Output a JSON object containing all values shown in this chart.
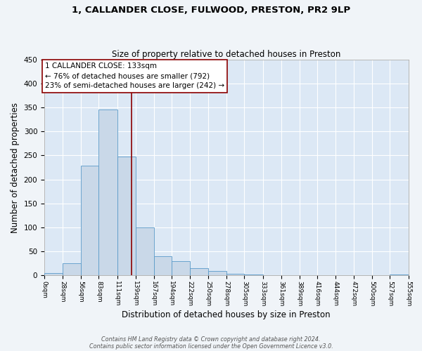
{
  "title": "1, CALLANDER CLOSE, FULWOOD, PRESTON, PR2 9LP",
  "subtitle": "Size of property relative to detached houses in Preston",
  "xlabel": "Distribution of detached houses by size in Preston",
  "ylabel": "Number of detached properties",
  "bar_color": "#c9d8e8",
  "bar_edge_color": "#5a9ac9",
  "background_color": "#dce8f5",
  "grid_color": "#ffffff",
  "vline_value": 133,
  "vline_color": "#8b0000",
  "bin_edges": [
    0,
    28,
    56,
    83,
    111,
    139,
    167,
    194,
    222,
    250,
    278,
    305,
    333,
    361,
    389,
    416,
    444,
    472,
    500,
    527,
    555
  ],
  "bar_heights": [
    5,
    25,
    228,
    345,
    248,
    100,
    40,
    30,
    15,
    10,
    3,
    2,
    0,
    0,
    0,
    0,
    0,
    0,
    0,
    2
  ],
  "ylim": [
    0,
    450
  ],
  "yticks": [
    0,
    50,
    100,
    150,
    200,
    250,
    300,
    350,
    400,
    450
  ],
  "annotation_title": "1 CALLANDER CLOSE: 133sqm",
  "annotation_line1": "← 76% of detached houses are smaller (792)",
  "annotation_line2": "23% of semi-detached houses are larger (242) →",
  "annotation_box_color": "#ffffff",
  "annotation_box_edge": "#8b0000",
  "footer1": "Contains HM Land Registry data © Crown copyright and database right 2024.",
  "footer2": "Contains public sector information licensed under the Open Government Licence v3.0.",
  "fig_facecolor": "#f0f4f8"
}
